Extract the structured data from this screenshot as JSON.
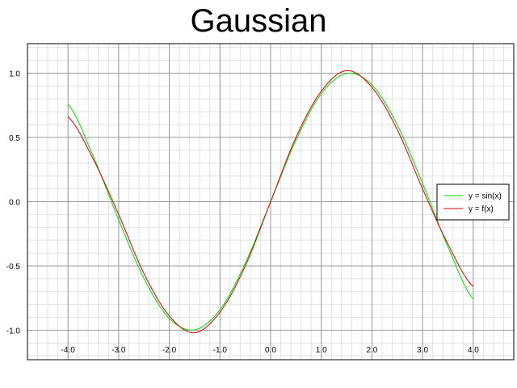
{
  "title": "Gaussian",
  "chart_data": {
    "type": "line",
    "title": "Gaussian",
    "xlabel": "",
    "ylabel": "",
    "xlim": [
      -4.8,
      4.8
    ],
    "ylim": [
      -1.23,
      1.23
    ],
    "x_ticks": [
      -4.0,
      -3.0,
      -2.0,
      -1.0,
      0.0,
      1.0,
      2.0,
      3.0,
      4.0
    ],
    "y_ticks": [
      -1.0,
      -0.5,
      0.0,
      0.5,
      1.0
    ],
    "x_tick_labels": [
      "-4.0",
      "-3.0",
      "-2.0",
      "-1.0",
      "0.0",
      "1.0",
      "2.0",
      "3.0",
      "4.0"
    ],
    "y_tick_labels": [
      "-1.0",
      "-0.5",
      "0.0",
      "0.5",
      "1.0"
    ],
    "grid": true,
    "legend_position": "right",
    "series": [
      {
        "name": "y = sin(x)",
        "color": "#00dd00",
        "x": [
          -4.0,
          -3.5,
          -3.0,
          -2.5,
          -2.0,
          -1.5,
          -1.0,
          -0.5,
          0.0,
          0.5,
          1.0,
          1.5,
          2.0,
          2.5,
          3.0,
          3.5,
          4.0
        ],
        "y": [
          0.757,
          0.351,
          -0.141,
          -0.598,
          -0.909,
          -0.997,
          -0.841,
          -0.479,
          0.0,
          0.479,
          0.841,
          0.997,
          0.909,
          0.598,
          0.141,
          -0.351,
          -0.757
        ]
      },
      {
        "name": "y = f(x)",
        "color": "#dd0000",
        "x": [
          -4.0,
          -3.5,
          -3.0,
          -2.5,
          -2.0,
          -1.5,
          -1.0,
          -0.5,
          0.0,
          0.5,
          1.0,
          1.5,
          2.0,
          2.5,
          3.0,
          3.5,
          4.0
        ],
        "y": [
          0.66,
          0.33,
          -0.1,
          -0.56,
          -0.89,
          -1.02,
          -0.86,
          -0.5,
          0.0,
          0.5,
          0.86,
          1.02,
          0.89,
          0.56,
          0.1,
          -0.33,
          -0.66
        ]
      }
    ]
  }
}
